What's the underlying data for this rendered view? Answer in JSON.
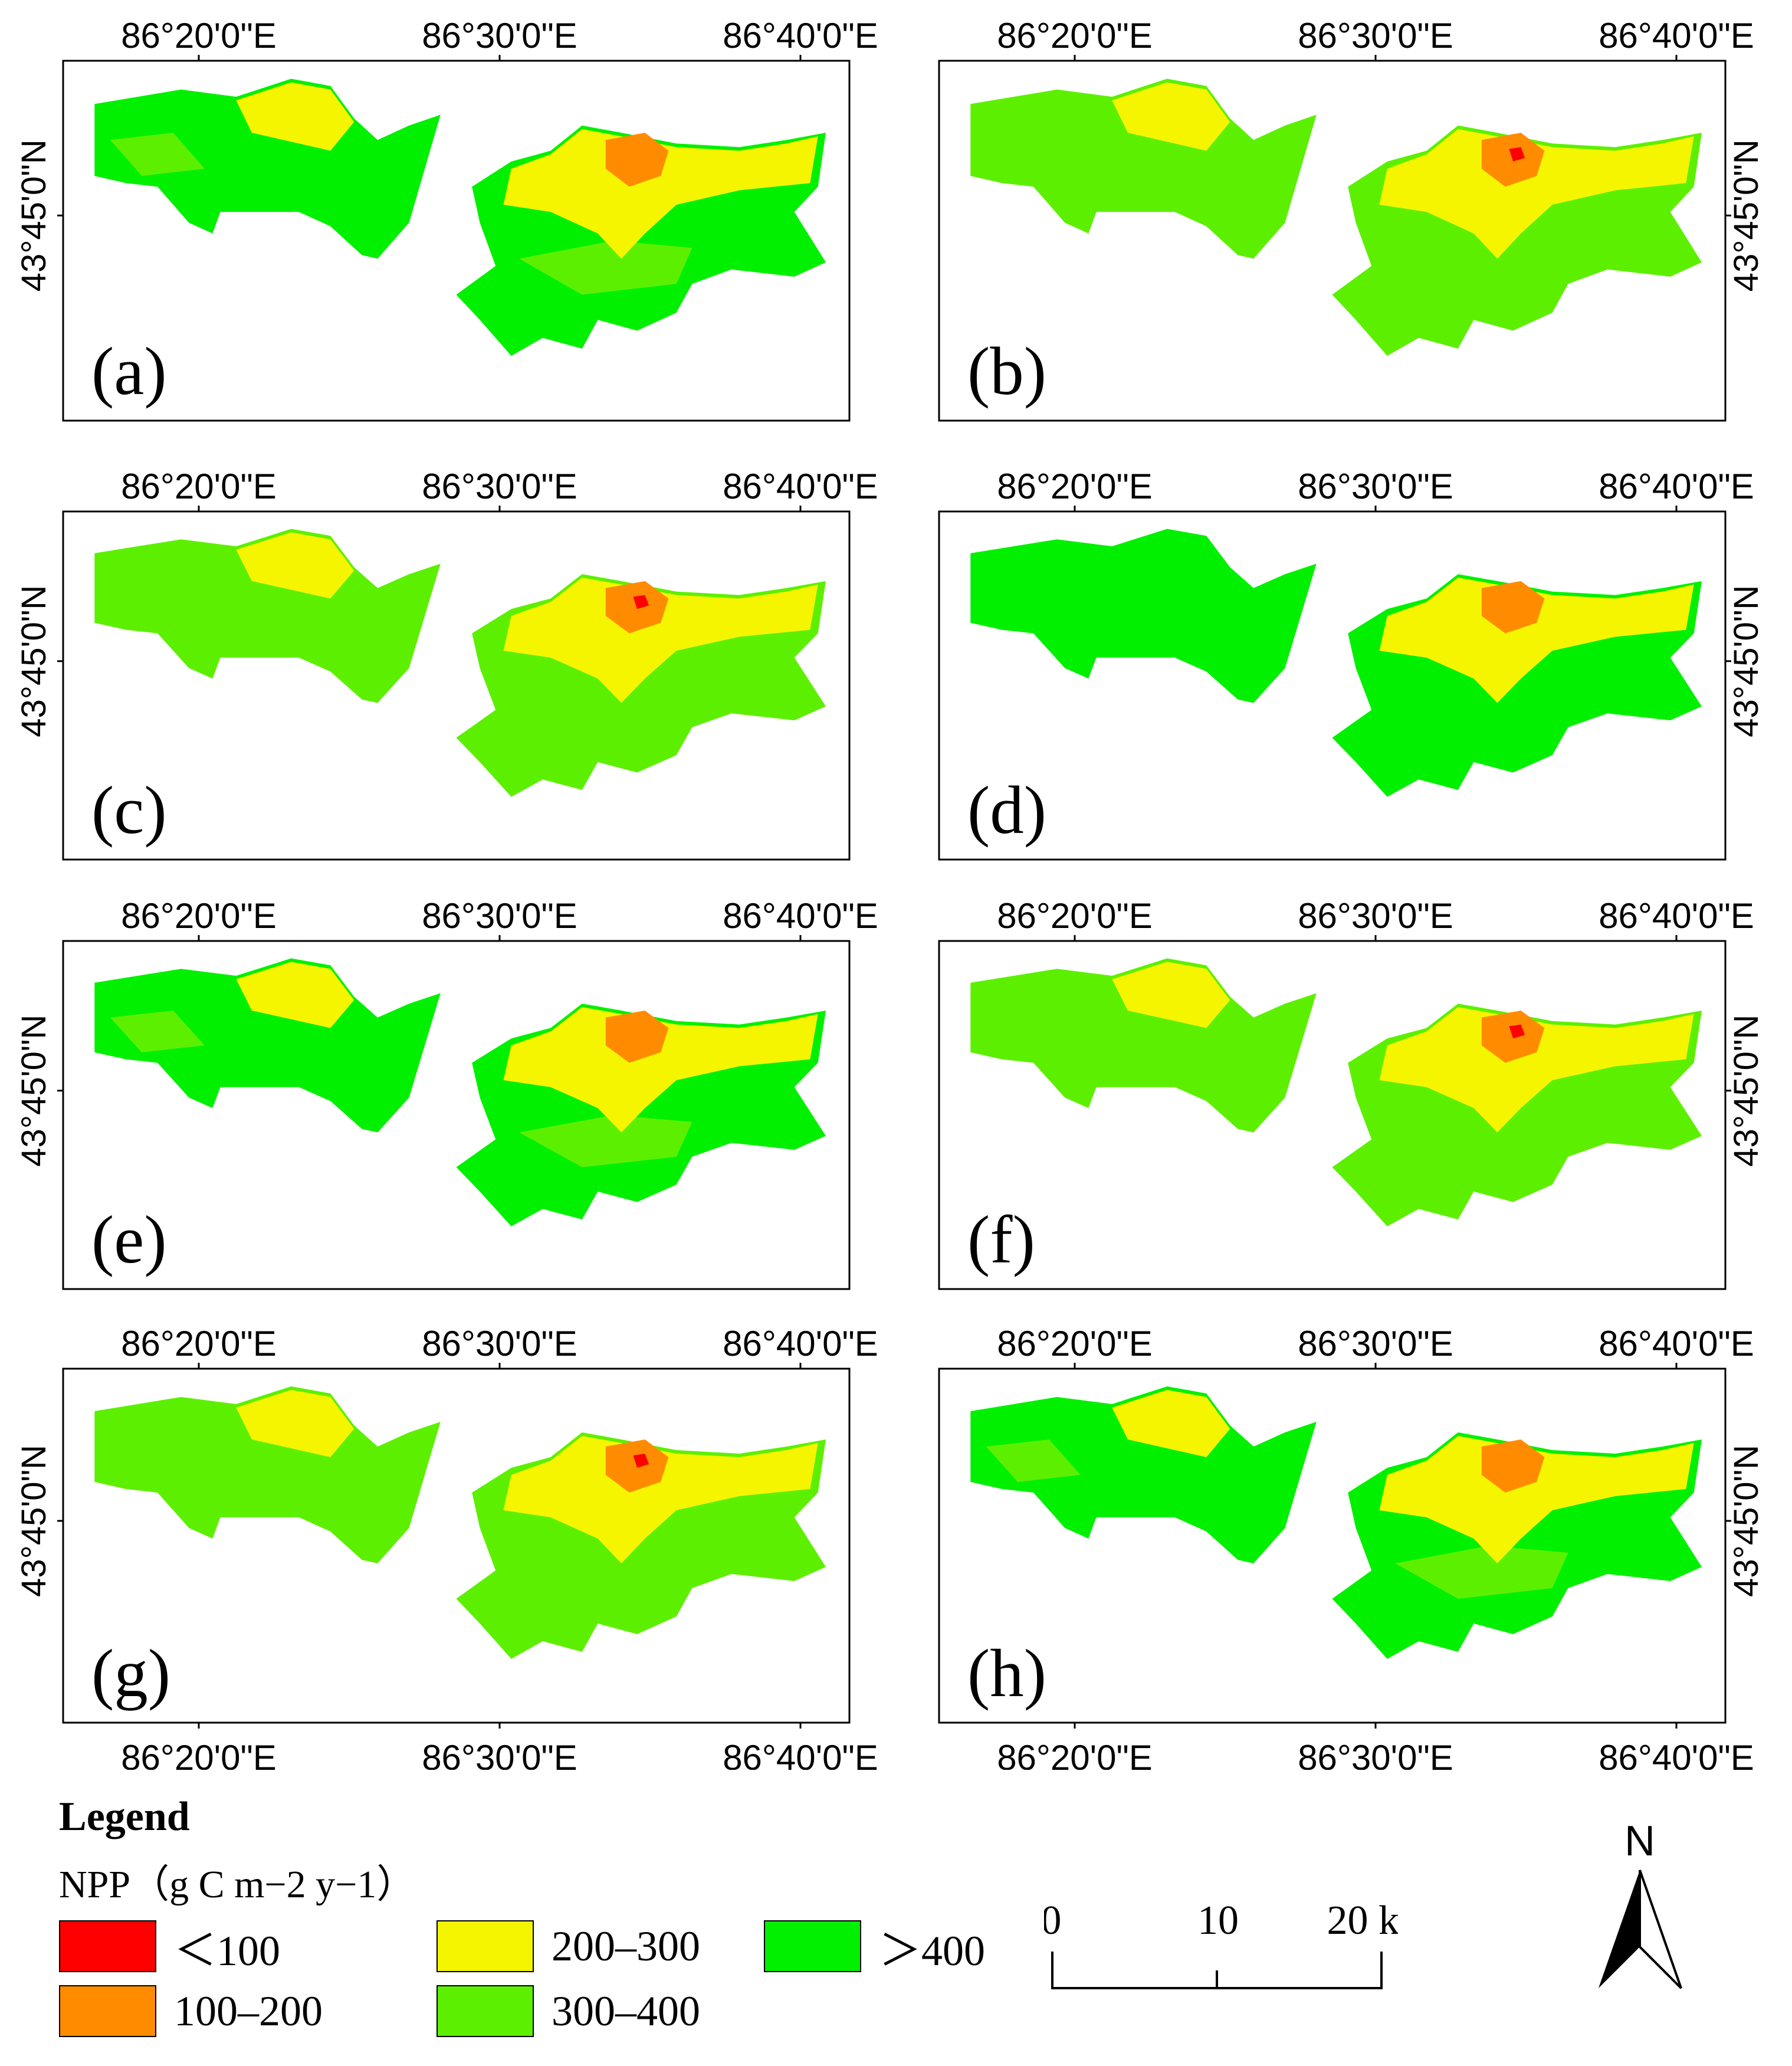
{
  "colors": {
    "lt100": "#ff0000",
    "c100_200": "#ff8c00",
    "c200_300": "#f5f500",
    "c300_400": "#5cf000",
    "gt400": "#00f000"
  },
  "axes": {
    "x_ticks": [
      "86°20'0\"E",
      "86°30'0\"E",
      "86°40'0\"E"
    ],
    "y_tick": "43°45'0\"N"
  },
  "panels": [
    {
      "label": "(a)",
      "zones": [
        "gt400",
        "c300_400",
        "c200_300",
        "c100_200"
      ]
    },
    {
      "label": "(b)",
      "zones": [
        "c300_400",
        "c200_300",
        "c100_200",
        "lt100"
      ]
    },
    {
      "label": "(c)",
      "zones": [
        "c300_400",
        "c200_300",
        "c100_200",
        "lt100"
      ]
    },
    {
      "label": "(d)",
      "zones": [
        "gt400",
        "c200_300",
        "c100_200"
      ]
    },
    {
      "label": "(e)",
      "zones": [
        "gt400",
        "c300_400",
        "c200_300",
        "c100_200"
      ]
    },
    {
      "label": "(f)",
      "zones": [
        "c300_400",
        "c200_300",
        "c100_200",
        "lt100"
      ]
    },
    {
      "label": "(g)",
      "zones": [
        "c300_400",
        "c200_300",
        "c100_200",
        "lt100"
      ]
    },
    {
      "label": "(h)",
      "zones": [
        "gt400",
        "c300_400",
        "c200_300",
        "c100_200"
      ]
    }
  ],
  "legend": {
    "title": "Legend",
    "subtitle": "NPP（g C m−2 y−1）",
    "items": [
      {
        "label": "＜100",
        "color_key": "lt100"
      },
      {
        "label": "100–200",
        "color_key": "c100_200"
      },
      {
        "label": "200–300",
        "color_key": "c200_300"
      },
      {
        "label": "300–400",
        "color_key": "c300_400"
      },
      {
        "label": "＞400",
        "color_key": "gt400"
      }
    ]
  },
  "scalebar": {
    "ticks": [
      "0",
      "10",
      "20 km"
    ]
  },
  "north": {
    "label": "N"
  }
}
